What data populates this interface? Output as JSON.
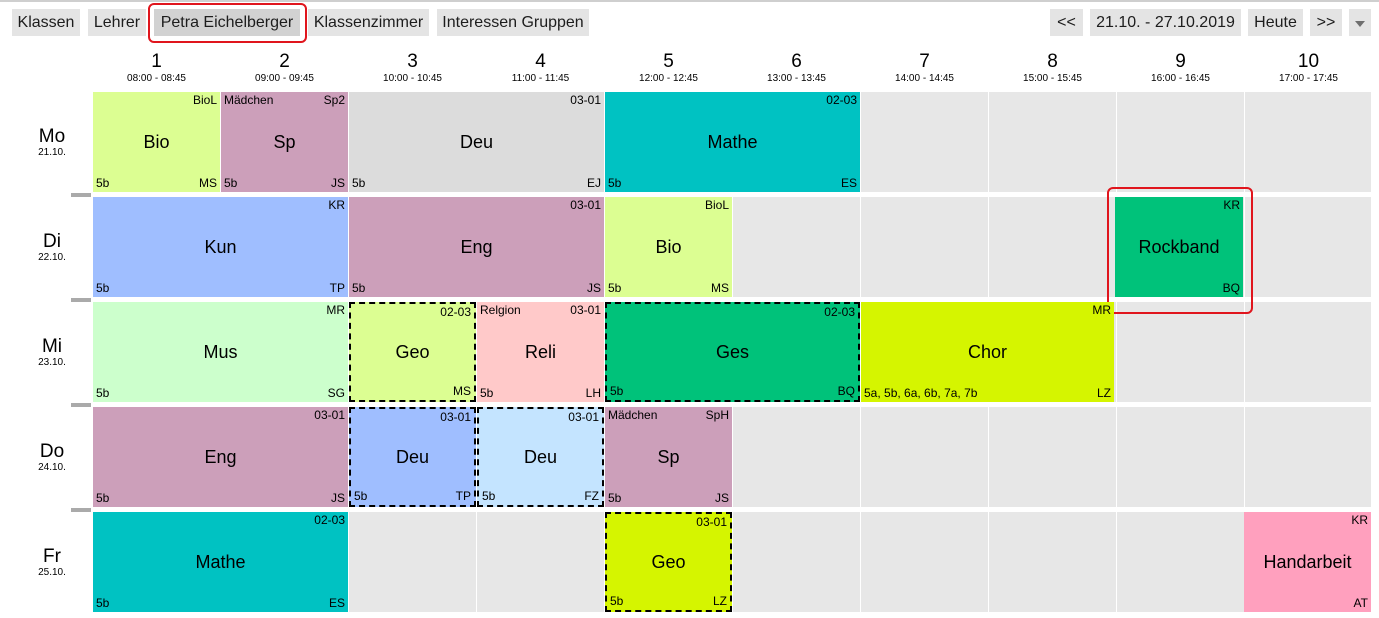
{
  "tabs": [
    {
      "label": "Klassen"
    },
    {
      "label": "Lehrer"
    },
    {
      "label": "Petra Eichelberger"
    },
    {
      "label": "Klassenzimmer"
    },
    {
      "label": "Interessen Gruppen"
    }
  ],
  "nav": {
    "prev": "<<",
    "range": "21.10. - 27.10.2019",
    "today": "Heute",
    "next": ">>"
  },
  "periods": [
    {
      "num": "1",
      "time": "08:00 - 08:45"
    },
    {
      "num": "2",
      "time": "09:00 - 09:45"
    },
    {
      "num": "3",
      "time": "10:00 - 10:45"
    },
    {
      "num": "4",
      "time": "11:00 - 11:45"
    },
    {
      "num": "5",
      "time": "12:00 - 12:45"
    },
    {
      "num": "6",
      "time": "13:00 - 13:45"
    },
    {
      "num": "7",
      "time": "14:00 - 14:45"
    },
    {
      "num": "8",
      "time": "15:00 - 15:45"
    },
    {
      "num": "9",
      "time": "16:00 - 16:45"
    },
    {
      "num": "10",
      "time": "17:00 - 17:45"
    }
  ],
  "days": [
    {
      "name": "Mo",
      "date": "21.10."
    },
    {
      "name": "Di",
      "date": "22.10."
    },
    {
      "name": "Mi",
      "date": "23.10."
    },
    {
      "name": "Do",
      "date": "24.10."
    },
    {
      "name": "Fr",
      "date": "25.10."
    }
  ],
  "lessons": [
    {
      "subject": "Bio",
      "tl": "",
      "tr": "BioL",
      "bl": "5b",
      "br": "MS",
      "color": "#dcfe92",
      "dashed": false
    },
    {
      "subject": "Sp",
      "tl": "Mädchen",
      "tr": "Sp2",
      "bl": "5b",
      "br": "JS",
      "color": "#cc9fba",
      "dashed": false
    },
    {
      "subject": "Deu",
      "tl": "",
      "tr": "03-01",
      "bl": "5b",
      "br": "EJ",
      "color": "#dcdcdc",
      "dashed": false
    },
    {
      "subject": "Mathe",
      "tl": "",
      "tr": "02-03",
      "bl": "5b",
      "br": "ES",
      "color": "#00c2c2",
      "dashed": false
    },
    {
      "subject": "Kun",
      "tl": "",
      "tr": "KR",
      "bl": "5b",
      "br": "TP",
      "color": "#9fbeff",
      "dashed": false
    },
    {
      "subject": "Eng",
      "tl": "",
      "tr": "03-01",
      "bl": "5b",
      "br": "JS",
      "color": "#cc9fba",
      "dashed": false
    },
    {
      "subject": "Bio",
      "tl": "",
      "tr": "BioL",
      "bl": "5b",
      "br": "MS",
      "color": "#dcfe92",
      "dashed": false
    },
    {
      "subject": "Rockband",
      "tl": "",
      "tr": "KR",
      "bl": "",
      "br": "BQ",
      "color": "#00c27a",
      "dashed": false
    },
    {
      "subject": "Mus",
      "tl": "",
      "tr": "MR",
      "bl": "5b",
      "br": "SG",
      "color": "#ccffcc",
      "dashed": false
    },
    {
      "subject": "Geo",
      "tl": "",
      "tr": "02-03",
      "bl": "",
      "br": "MS",
      "color": "#dcfe92",
      "dashed": true
    },
    {
      "subject": "Reli",
      "tl": "Relgion",
      "tr": "03-01",
      "bl": "5b",
      "br": "LH",
      "color": "#ffc9c9",
      "dashed": false
    },
    {
      "subject": "Ges",
      "tl": "",
      "tr": "02-03",
      "bl": "5b",
      "br": "BQ",
      "color": "#00c27a",
      "dashed": true
    },
    {
      "subject": "Chor",
      "tl": "",
      "tr": "MR",
      "bl": "5a, 5b, 6a, 6b, 7a, 7b",
      "br": "LZ",
      "color": "#d5f500",
      "dashed": false
    },
    {
      "subject": "Eng",
      "tl": "",
      "tr": "03-01",
      "bl": "5b",
      "br": "JS",
      "color": "#cc9fba",
      "dashed": false
    },
    {
      "subject": "Deu",
      "tl": "",
      "tr": "03-01",
      "bl": "5b",
      "br": "TP",
      "color": "#9fbeff",
      "dashed": true
    },
    {
      "subject": "Deu",
      "tl": "",
      "tr": "03-01",
      "bl": "5b",
      "br": "FZ",
      "color": "#c4e4ff",
      "dashed": true
    },
    {
      "subject": "Sp",
      "tl": "Mädchen",
      "tr": "SpH",
      "bl": "5b",
      "br": "JS",
      "color": "#cc9fba",
      "dashed": false
    },
    {
      "subject": "Mathe",
      "tl": "",
      "tr": "02-03",
      "bl": "5b",
      "br": "ES",
      "color": "#00c2c2",
      "dashed": false
    },
    {
      "subject": "Geo",
      "tl": "",
      "tr": "03-01",
      "bl": "5b",
      "br": "LZ",
      "color": "#d5f500",
      "dashed": true
    },
    {
      "subject": "Handarbeit",
      "tl": "",
      "tr": "KR",
      "bl": "",
      "br": "AT",
      "color": "#ffa0be",
      "dashed": false
    }
  ]
}
